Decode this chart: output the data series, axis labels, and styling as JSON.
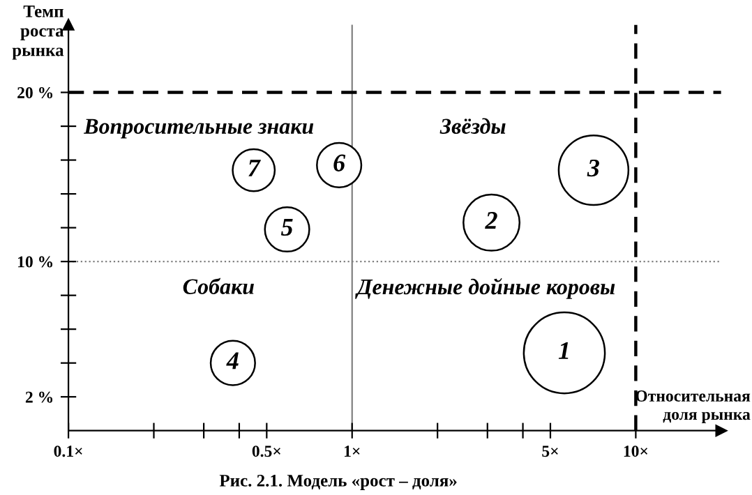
{
  "chart_data": {
    "type": "bubble",
    "title": "Рис. 2.1. Модель «рост – доля»",
    "xlabel": "Относительная\nдоля рынка",
    "ylabel": "Темп\nроста\nрынка",
    "series": [
      {
        "name": "1",
        "color": "#000000",
        "x": [
          5.6
        ],
        "values": [
          4.6
        ],
        "sizes": [
          1
        ]
      },
      {
        "name": "2",
        "color": "#000000",
        "x": [
          3.1
        ],
        "values": [
          12.3
        ],
        "sizes": [
          0.48
        ]
      },
      {
        "name": "3",
        "color": "#000000",
        "x": [
          7.1
        ],
        "values": [
          15.4
        ],
        "sizes": [
          0.74
        ]
      },
      {
        "name": "4",
        "color": "#000000",
        "x": [
          0.38
        ],
        "values": [
          4.0
        ],
        "sizes": [
          0.3
        ]
      },
      {
        "name": "5",
        "color": "#000000",
        "x": [
          0.59
        ],
        "values": [
          11.9
        ],
        "sizes": [
          0.3
        ]
      },
      {
        "name": "6",
        "color": "#000000",
        "x": [
          0.9
        ],
        "values": [
          15.7
        ],
        "sizes": [
          0.3
        ]
      },
      {
        "name": "7",
        "color": "#000000",
        "x": [
          0.45
        ],
        "values": [
          15.4
        ],
        "sizes": [
          0.27
        ]
      }
    ],
    "log": "x",
    "grid": false,
    "legend": false,
    "xlim": [
      0.1,
      20
    ],
    "ylim": [
      0,
      24
    ],
    "xticks": [
      {
        "value": 0.1,
        "label": "0.1×"
      },
      {
        "value": 0.2,
        "label": null
      },
      {
        "value": 0.3,
        "label": null
      },
      {
        "value": 0.4,
        "label": null
      },
      {
        "value": 0.5,
        "label": "0.5×"
      },
      {
        "value": 1,
        "label": "1×"
      },
      {
        "value": 2,
        "label": null
      },
      {
        "value": 3,
        "label": null
      },
      {
        "value": 4,
        "label": null
      },
      {
        "value": 5,
        "label": "5×"
      },
      {
        "value": 10,
        "label": "10×"
      }
    ],
    "yticks": [
      {
        "value": 2,
        "label": "2 %"
      },
      {
        "value": 4,
        "label": null
      },
      {
        "value": 6,
        "label": null
      },
      {
        "value": 8,
        "label": null
      },
      {
        "value": 10,
        "label": "10 %"
      },
      {
        "value": 12,
        "label": null
      },
      {
        "value": 14,
        "label": null
      },
      {
        "value": 16,
        "label": null
      },
      {
        "value": 18,
        "label": null
      },
      {
        "value": 20,
        "label": "20 %"
      }
    ],
    "ref_lines": [
      {
        "axis": "x",
        "value": 1,
        "color": "#808080",
        "line_style": "solid"
      },
      {
        "axis": "y",
        "value": 10,
        "color": "#808080",
        "line_style": "dotted"
      },
      {
        "axis": "x",
        "value": 10,
        "color": "#000000",
        "line_style": "dashed"
      },
      {
        "axis": "y",
        "value": 20,
        "color": "#000000",
        "line_style": "dashed"
      }
    ],
    "annotations": [
      "Вопросительные знаки",
      "Звёзды",
      "Собаки",
      "Денежные дойные коровы"
    ]
  }
}
